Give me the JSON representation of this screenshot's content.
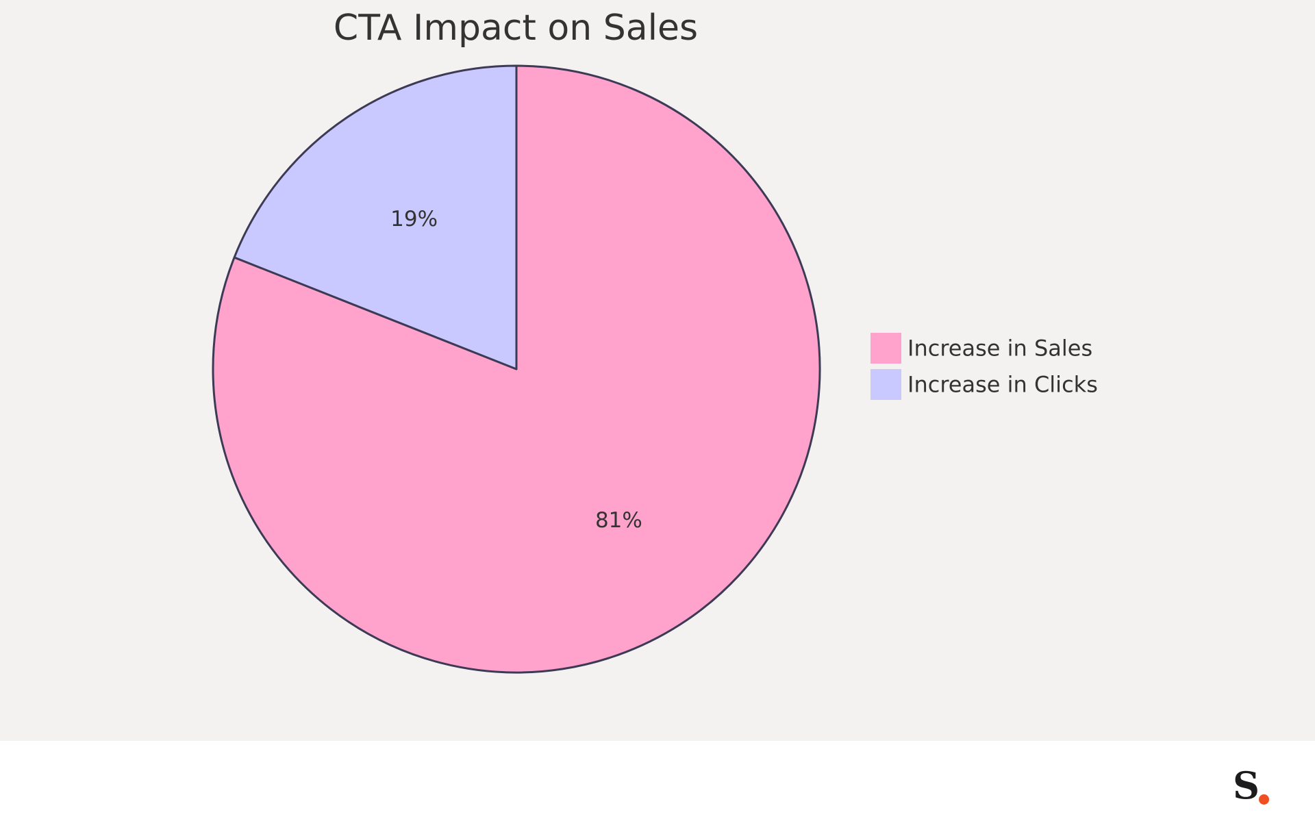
{
  "chart_data": {
    "type": "pie",
    "title": "CTA Impact on Sales",
    "slices": [
      {
        "name": "Increase in Sales",
        "value": 81,
        "label": "81%",
        "color": "#ffa3cc"
      },
      {
        "name": "Increase in Clicks",
        "value": 19,
        "label": "19%",
        "color": "#c9c9ff"
      }
    ],
    "legend_position": "right",
    "stroke_color": "#3d3a55"
  },
  "brand": {
    "logo_icon": "s-dot-logo-icon",
    "dot_color": "#f04e23"
  }
}
